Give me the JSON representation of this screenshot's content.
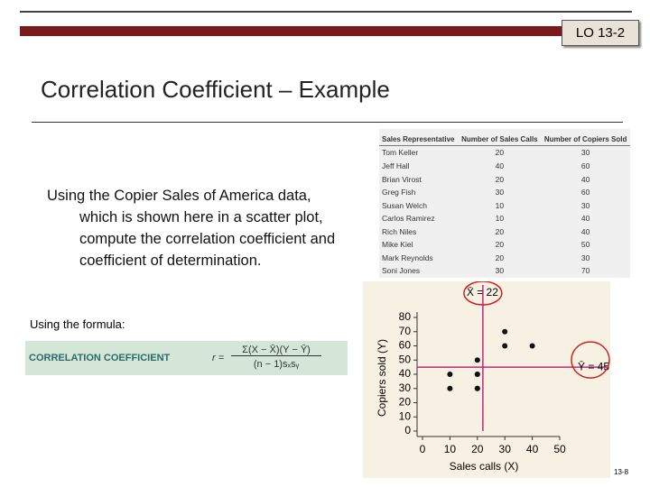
{
  "badge": "LO 13-2",
  "title": "Correlation Coefficient – Example",
  "body": "Using the Copier Sales of America data, which is shown here in a scatter plot, compute the correlation coefficient and coefficient of determination.",
  "formula_intro": "Using the formula:",
  "formula": {
    "label": "CORRELATION COEFFICIENT",
    "lhs": "r =",
    "numerator": "Σ(X − X̄)(Y − Ȳ)",
    "denominator": "(n − 1)sₓsᵧ"
  },
  "table": {
    "columns": [
      "Sales Representative",
      "Number of Sales Calls",
      "Number of Copiers Sold"
    ],
    "rows": [
      [
        "Tom Keller",
        20,
        30
      ],
      [
        "Jeff Hall",
        40,
        60
      ],
      [
        "Brian Virost",
        20,
        40
      ],
      [
        "Greg Fish",
        30,
        60
      ],
      [
        "Susan Welch",
        10,
        30
      ],
      [
        "Carlos Ramirez",
        10,
        40
      ],
      [
        "Rich Niles",
        20,
        40
      ],
      [
        "Mike Kiel",
        20,
        50
      ],
      [
        "Mark Reynolds",
        20,
        30
      ],
      [
        "Soni Jones",
        30,
        70
      ]
    ]
  },
  "chart_data": {
    "type": "scatter",
    "x_label": "Sales calls (X)",
    "y_label": "Copiers sold (Y)",
    "x": [
      20,
      40,
      20,
      30,
      10,
      10,
      20,
      20,
      20,
      30
    ],
    "values": [
      30,
      60,
      40,
      60,
      30,
      40,
      40,
      50,
      30,
      70
    ],
    "color": "#111111",
    "xlim": [
      0,
      50
    ],
    "xticks": [
      0,
      10,
      20,
      30,
      40,
      50
    ],
    "ylim": [
      0,
      80
    ],
    "yticks": [
      0,
      10,
      20,
      30,
      40,
      50,
      60,
      70,
      80
    ],
    "mean_lines": [
      {
        "axis": "x",
        "value": 22,
        "label": "X̄ = 22"
      },
      {
        "axis": "y",
        "value": 45,
        "label": "Ȳ = 45"
      }
    ],
    "mean_color": "#c0287a"
  },
  "page_number": "13-8"
}
